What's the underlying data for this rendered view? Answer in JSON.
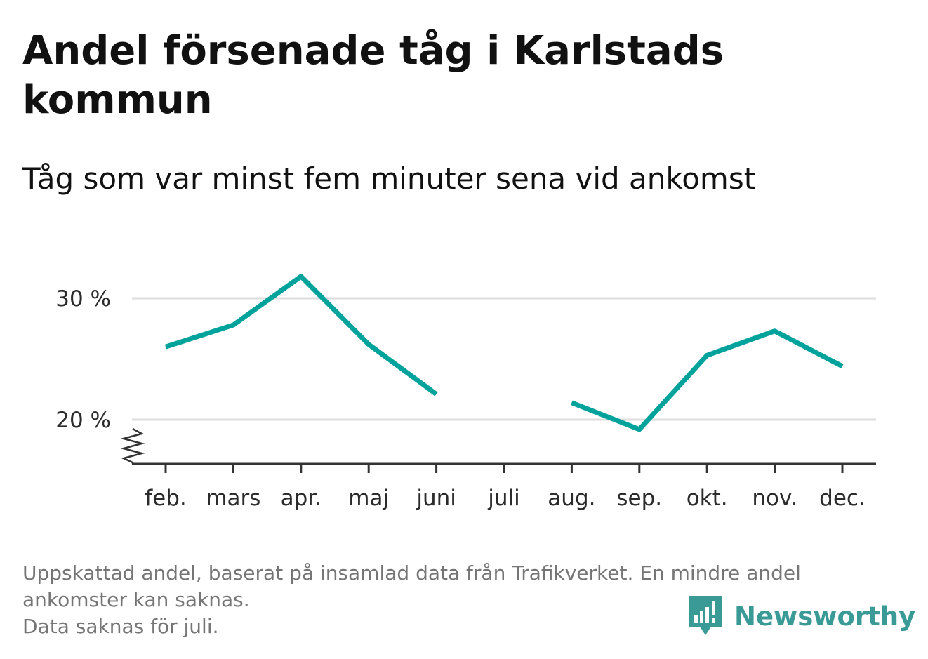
{
  "header": {
    "title": "Andel försenade tåg i Karlstads kommun",
    "subtitle": "Tåg som var minst fem minuter sena vid ankomst"
  },
  "footer": {
    "note_line1": "Uppskattad andel, baserat på insamlad data från Trafikverket. En mindre andel",
    "note_line2": "ankomster kan saknas.",
    "note_line3": "Data saknas för juli.",
    "brand_name": "Newsworthy",
    "brand_icon": "newsworthy-logo-icon"
  },
  "colors": {
    "line": "#00a39b",
    "grid": "#dddddd",
    "axis": "#333333",
    "brand": "#3a9a96"
  },
  "chart_data": {
    "type": "line",
    "title": "Andel försenade tåg i Karlstads kommun",
    "subtitle": "Tåg som var minst fem minuter sena vid ankomst",
    "categories": [
      "feb.",
      "mars",
      "apr.",
      "maj",
      "juni",
      "juli",
      "aug.",
      "sep.",
      "okt.",
      "nov.",
      "dec."
    ],
    "series": [
      {
        "values": [
          26.0,
          27.8,
          31.8,
          26.2,
          22.1,
          null,
          21.4,
          19.2,
          25.3,
          27.3,
          24.4
        ]
      }
    ],
    "y_ticks": [
      20,
      30
    ],
    "y_tick_labels": [
      "20 %",
      "30 %"
    ],
    "ylim": [
      16.5,
      33
    ],
    "y_axis_break": true,
    "grid": true,
    "legend": "none"
  }
}
